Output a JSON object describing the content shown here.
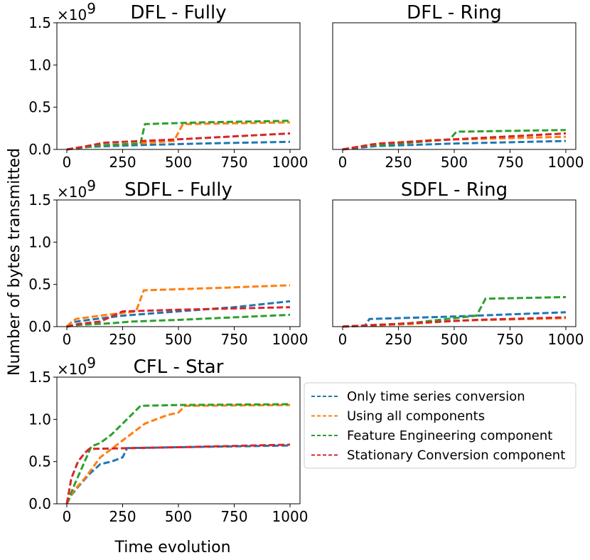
{
  "figure": {
    "ylabel": "Number of bytes transmitted",
    "xlabel": "Time evolution",
    "offset_prefix": "×10",
    "offset_exp": "9"
  },
  "colors": {
    "Only time series conversion": "#1f77b4",
    "Using all components": "#ff7f0e",
    "Feature Engineering component": "#2ca02c",
    "Stationary Conversion component": "#d62728"
  },
  "legend": {
    "entries": [
      "Only time series conversion",
      "Using all components",
      "Feature Engineering component",
      "Stationary Conversion component"
    ],
    "placement": "right-of-bottom-left-panel"
  },
  "chart_data": [
    {
      "type": "line",
      "title": "DFL - Fully",
      "xlim": [
        0,
        1000
      ],
      "ylim": [
        0,
        1.5
      ],
      "xticks": [
        "0",
        "250",
        "500",
        "750",
        "1000"
      ],
      "yticks": [
        "0.0",
        "0.5",
        "1.0",
        "1.5"
      ],
      "y_scale": "×10^9",
      "series": [
        {
          "name": "Only time series conversion",
          "x": [
            0,
            100,
            300,
            600,
            1000
          ],
          "values": [
            0,
            0.03,
            0.05,
            0.07,
            0.09
          ]
        },
        {
          "name": "Using all components",
          "x": [
            0,
            100,
            250,
            480,
            520,
            1000
          ],
          "values": [
            0,
            0.04,
            0.06,
            0.1,
            0.3,
            0.32
          ]
        },
        {
          "name": "Feature Engineering component",
          "x": [
            0,
            150,
            330,
            350,
            600,
            1000
          ],
          "values": [
            0,
            0.05,
            0.07,
            0.3,
            0.32,
            0.34
          ]
        },
        {
          "name": "Stationary Conversion component",
          "x": [
            0,
            70,
            170,
            500,
            1000
          ],
          "values": [
            0,
            0.03,
            0.08,
            0.12,
            0.19
          ]
        }
      ]
    },
    {
      "type": "line",
      "title": "DFL - Ring",
      "xlim": [
        0,
        1000
      ],
      "ylim": [
        0,
        1.5
      ],
      "xticks": [
        "0",
        "250",
        "500",
        "750",
        "1000"
      ],
      "yticks": [],
      "series": [
        {
          "name": "Only time series conversion",
          "x": [
            0,
            150,
            500,
            1000
          ],
          "values": [
            0,
            0.04,
            0.07,
            0.1
          ]
        },
        {
          "name": "Using all components",
          "x": [
            0,
            130,
            400,
            1000
          ],
          "values": [
            0,
            0.06,
            0.11,
            0.15
          ]
        },
        {
          "name": "Feature Engineering component",
          "x": [
            0,
            100,
            300,
            480,
            510,
            1000
          ],
          "values": [
            0,
            0.04,
            0.08,
            0.12,
            0.21,
            0.23
          ]
        },
        {
          "name": "Stationary Conversion component",
          "x": [
            0,
            160,
            500,
            1000
          ],
          "values": [
            0,
            0.07,
            0.12,
            0.19
          ]
        }
      ]
    },
    {
      "type": "line",
      "title": "SDFL - Fully",
      "xlim": [
        0,
        1000
      ],
      "ylim": [
        0,
        1.5
      ],
      "xticks": [
        "0",
        "250",
        "500",
        "750",
        "1000"
      ],
      "yticks": [
        "0.0",
        "0.5",
        "1.0",
        "1.5"
      ],
      "y_scale": "×10^9",
      "series": [
        {
          "name": "Only time series conversion",
          "x": [
            0,
            20,
            70,
            250,
            500,
            750,
            1000
          ],
          "values": [
            0,
            0.05,
            0.07,
            0.13,
            0.18,
            0.23,
            0.3
          ]
        },
        {
          "name": "Using all components",
          "x": [
            0,
            40,
            150,
            310,
            345,
            700,
            1000
          ],
          "values": [
            0,
            0.09,
            0.13,
            0.18,
            0.43,
            0.46,
            0.49
          ]
        },
        {
          "name": "Feature Engineering component",
          "x": [
            0,
            50,
            200,
            290,
            500,
            1000
          ],
          "values": [
            0,
            0.02,
            0.04,
            0.06,
            0.08,
            0.14
          ]
        },
        {
          "name": "Stationary Conversion component",
          "x": [
            0,
            50,
            150,
            250,
            500,
            1000
          ],
          "values": [
            0,
            0.03,
            0.06,
            0.18,
            0.2,
            0.23
          ]
        }
      ]
    },
    {
      "type": "line",
      "title": "SDFL - Ring",
      "xlim": [
        0,
        1000
      ],
      "ylim": [
        0,
        1.5
      ],
      "xticks": [
        "0",
        "250",
        "500",
        "750",
        "1000"
      ],
      "yticks": [],
      "series": [
        {
          "name": "Only time series conversion",
          "x": [
            0,
            100,
            120,
            500,
            1000
          ],
          "values": [
            0,
            0.01,
            0.09,
            0.12,
            0.17
          ]
        },
        {
          "name": "Using all components",
          "x": [
            0,
            300,
            500,
            1000
          ],
          "values": [
            0,
            0.03,
            0.07,
            0.1
          ]
        },
        {
          "name": "Feature Engineering component",
          "x": [
            0,
            300,
            600,
            640,
            1000
          ],
          "values": [
            0,
            0.04,
            0.13,
            0.33,
            0.35
          ]
        },
        {
          "name": "Stationary Conversion component",
          "x": [
            0,
            300,
            600,
            1000
          ],
          "values": [
            0,
            0.04,
            0.08,
            0.11
          ]
        }
      ]
    },
    {
      "type": "line",
      "title": "CFL - Star",
      "xlim": [
        0,
        1000
      ],
      "ylim": [
        0,
        1.5
      ],
      "xticks": [
        "0",
        "250",
        "500",
        "750",
        "1000"
      ],
      "yticks": [
        "0.0",
        "0.5",
        "1.0",
        "1.5"
      ],
      "y_scale": "×10^9",
      "series": [
        {
          "name": "Only time series conversion",
          "x": [
            0,
            20,
            50,
            100,
            150,
            200,
            250,
            270,
            500,
            1000
          ],
          "values": [
            0,
            0.1,
            0.2,
            0.35,
            0.47,
            0.5,
            0.55,
            0.66,
            0.67,
            0.69
          ]
        },
        {
          "name": "Using all components",
          "x": [
            0,
            30,
            80,
            150,
            200,
            250,
            300,
            350,
            400,
            450,
            500,
            530,
            1000
          ],
          "values": [
            0,
            0.15,
            0.3,
            0.55,
            0.65,
            0.75,
            0.85,
            0.95,
            1.0,
            1.05,
            1.08,
            1.16,
            1.17
          ]
        },
        {
          "name": "Feature Engineering component",
          "x": [
            0,
            30,
            80,
            110,
            150,
            200,
            250,
            300,
            330,
            500,
            1000
          ],
          "values": [
            0,
            0.2,
            0.5,
            0.68,
            0.72,
            0.82,
            0.95,
            1.08,
            1.16,
            1.17,
            1.18
          ]
        },
        {
          "name": "Stationary Conversion component",
          "x": [
            0,
            20,
            50,
            80,
            100,
            500,
            1000
          ],
          "values": [
            0,
            0.3,
            0.5,
            0.6,
            0.65,
            0.67,
            0.7
          ]
        }
      ]
    }
  ]
}
